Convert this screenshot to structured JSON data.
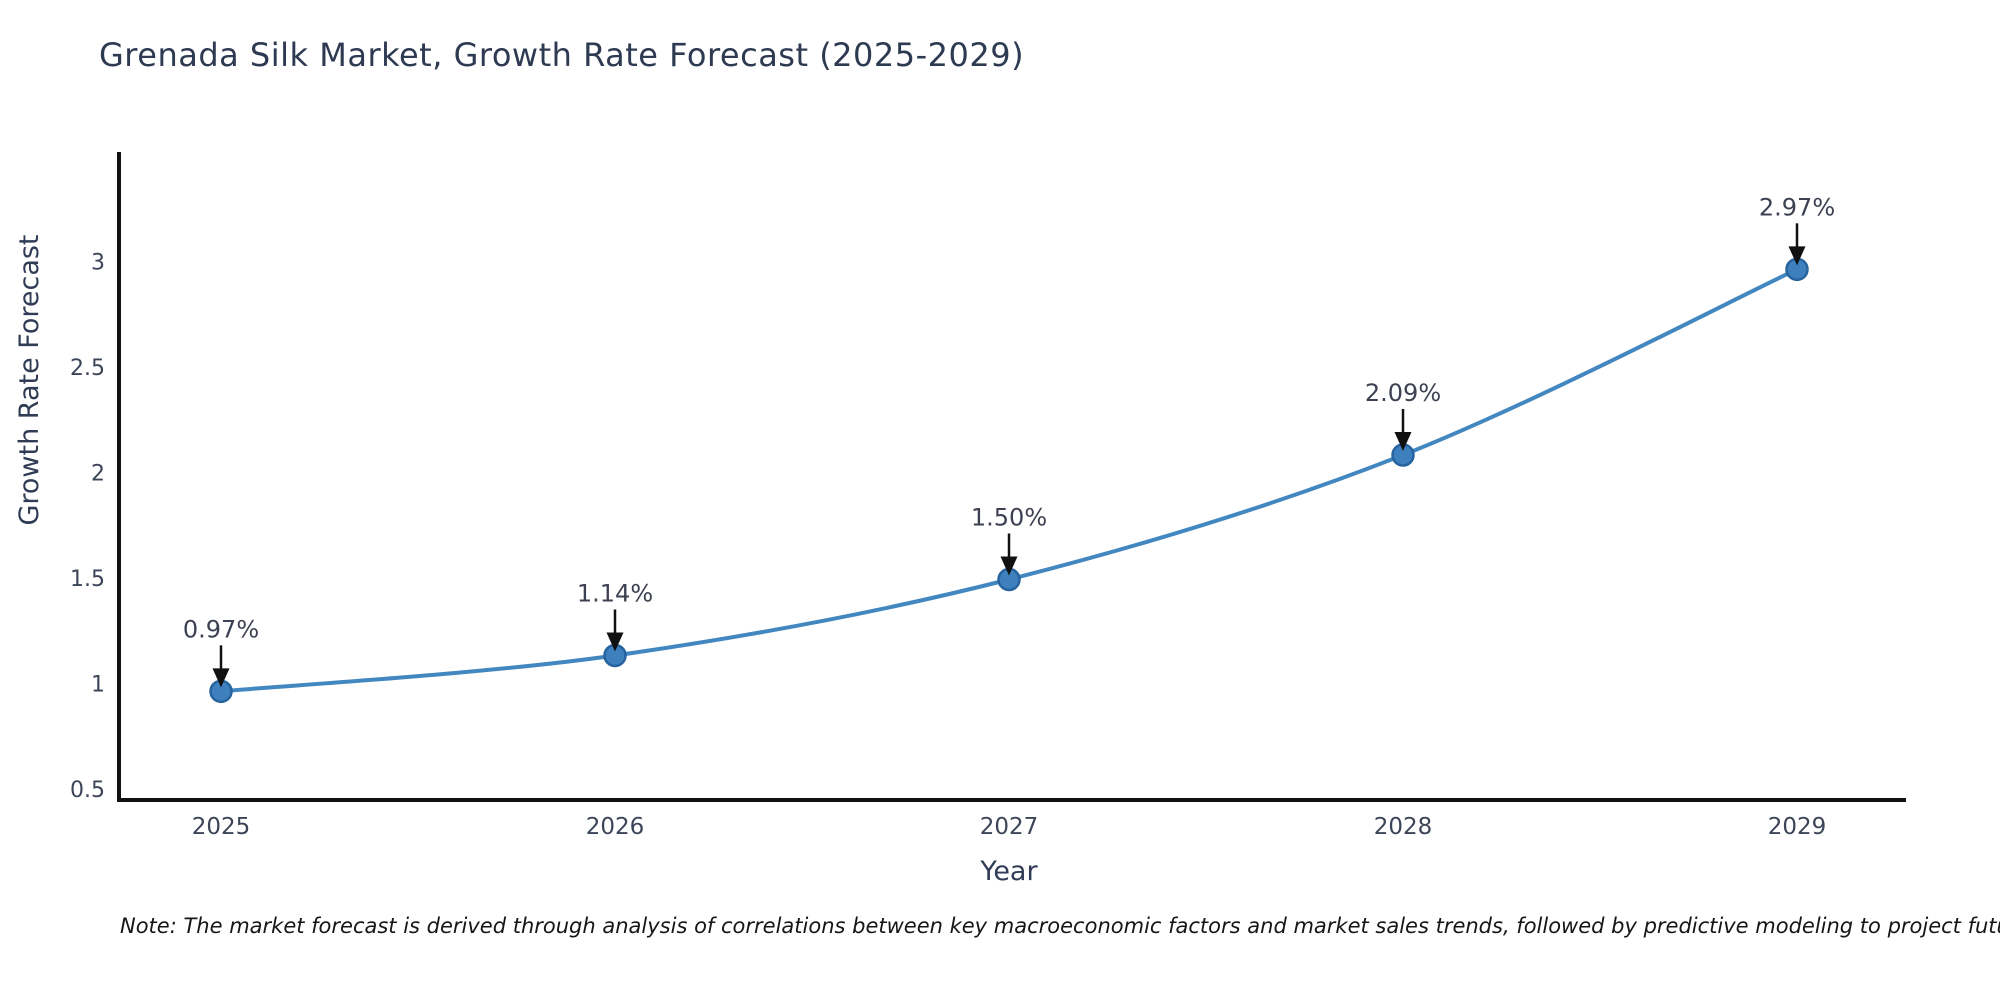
{
  "page": {
    "background": "#ffffff"
  },
  "chart_data": {
    "type": "line",
    "title": "Grenada Silk Market, Growth Rate Forecast (2025-2029)",
    "xlabel": "Year",
    "ylabel": "Growth Rate Forecast",
    "x": [
      2025,
      2026,
      2027,
      2028,
      2029
    ],
    "series": [
      {
        "name": "Growth Rate Forecast",
        "values": [
          0.97,
          1.14,
          1.5,
          2.09,
          2.97
        ]
      }
    ],
    "point_labels": [
      "0.97%",
      "1.14%",
      "1.50%",
      "2.09%",
      "2.97%"
    ],
    "yticks": [
      0.5,
      1,
      1.5,
      2,
      2.5,
      3
    ],
    "ytick_labels": [
      "0.5",
      "1",
      "1.5",
      "2",
      "2.5",
      "3"
    ],
    "xtick_labels": [
      "2025",
      "2026",
      "2027",
      "2028",
      "2029"
    ],
    "ylim": [
      0.46,
      3.53
    ],
    "grid": false,
    "legend": "none",
    "line_style": "smooth-spline",
    "marker_style": "circle",
    "annotation_arrows": "down",
    "note": "Note: The market forecast is derived through analysis of correlations between key macroeconomic factors and market sales trends, followed by predictive modeling to project future sales",
    "colors": {
      "line": "#4287c0",
      "marker_fill": "#3d80bd",
      "marker_edge": "#27639e",
      "axis_line": "#111111",
      "tick_text": "#3c4558",
      "axis_title_text": "#303c55",
      "annotation_text": "#3d4152",
      "arrow": "#111111",
      "title_text": "#2e3a52",
      "note_text": "#161616"
    }
  }
}
